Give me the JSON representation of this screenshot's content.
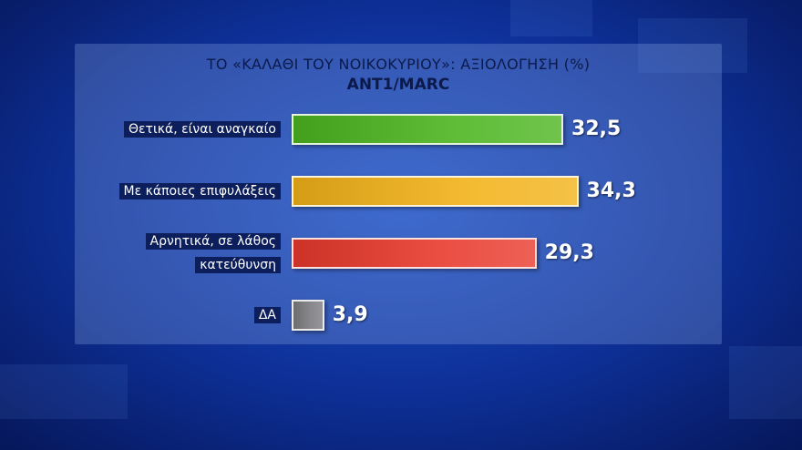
{
  "chart_data": {
    "type": "bar",
    "title": "ΤΟ «ΚΑΛΑΘΙ ΤΟΥ ΝΟΙΚΟΚΥΡΙΟΥ»: ΑΞΙΟΛΟΓΗΣΗ (%)",
    "subtitle": "ANT1/MARC",
    "categories": [
      "Θετικά, είναι αναγκαίο",
      "Με κάποιες επιφυλάξεις",
      "Αρνητικά, σε λάθος κατεύθυνση",
      "ΔΑ"
    ],
    "values": [
      32.5,
      34.3,
      29.3,
      3.9
    ],
    "value_labels": [
      "32,5",
      "34,3",
      "29,3",
      "3,9"
    ],
    "colors": [
      "#4cb520",
      "#f2b219",
      "#e8392c",
      "#7c7c80"
    ]
  }
}
